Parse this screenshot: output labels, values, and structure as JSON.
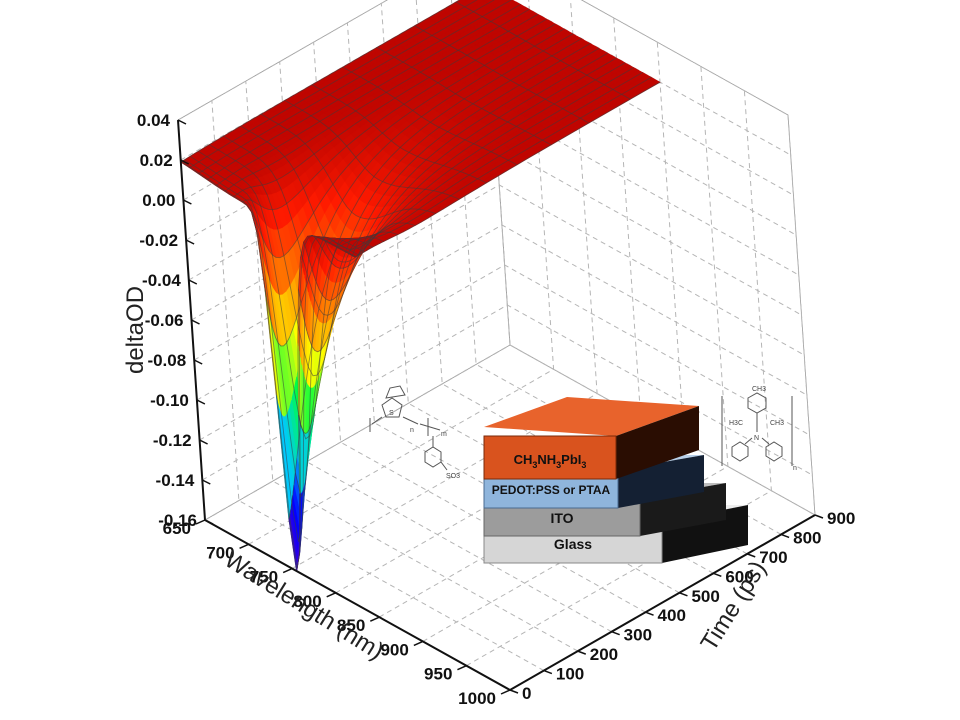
{
  "chart_data": {
    "type": "surface3d",
    "title": "",
    "xlabel": "Wavelength (nm)",
    "ylabel": "Time (ps)",
    "zlabel": "deltaOD",
    "x_ticks": [
      "650",
      "700",
      "750",
      "800",
      "850",
      "900",
      "950",
      "1000"
    ],
    "y_ticks": [
      "0",
      "100",
      "200",
      "300",
      "400",
      "500",
      "600",
      "700",
      "800",
      "900"
    ],
    "z_ticks": [
      "0.04",
      "0.02",
      "0.00",
      "-0.02",
      "-0.04",
      "-0.06",
      "-0.08",
      "-0.10",
      "-0.12",
      "-0.14",
      "-0.16"
    ],
    "xlim": [
      650,
      1000
    ],
    "ylim": [
      0,
      900
    ],
    "zlim": [
      -0.16,
      0.04
    ],
    "grid": true,
    "colormap": [
      "#5a00c8",
      "#0000ff",
      "#00c8ff",
      "#00ff40",
      "#ffff00",
      "#ff8000",
      "#ff1a00",
      "#b00000"
    ],
    "surface": {
      "peak_wavelength_nm": 755,
      "min_deltaOD": -0.16,
      "baseline_deltaOD": 0.02,
      "decay_time_ps": 120,
      "long_wavelength_edge_nm": 850
    }
  },
  "inset": {
    "layers": [
      {
        "label": "CH3NH3PbI3",
        "color": "#d9531e"
      },
      {
        "label": "PEDOT:PSS or PTAA",
        "color": "#8fb5dc"
      },
      {
        "label": "ITO",
        "color": "#9c9c9c"
      },
      {
        "label": "Glass",
        "color": "#d6d6d6"
      }
    ],
    "perovskite_label": {
      "a": "CH",
      "s1": "3",
      "b": "NH",
      "s2": "3",
      "c": "PbI",
      "s3": "3"
    },
    "pedot_text": {
      "s": "S",
      "so3": "SO3",
      "sub_n": "n",
      "sub_m": "m"
    },
    "ptaa_text": {
      "ch3": "CH3",
      "h3c": "H3C",
      "n": "N",
      "sub_n": "n"
    }
  }
}
